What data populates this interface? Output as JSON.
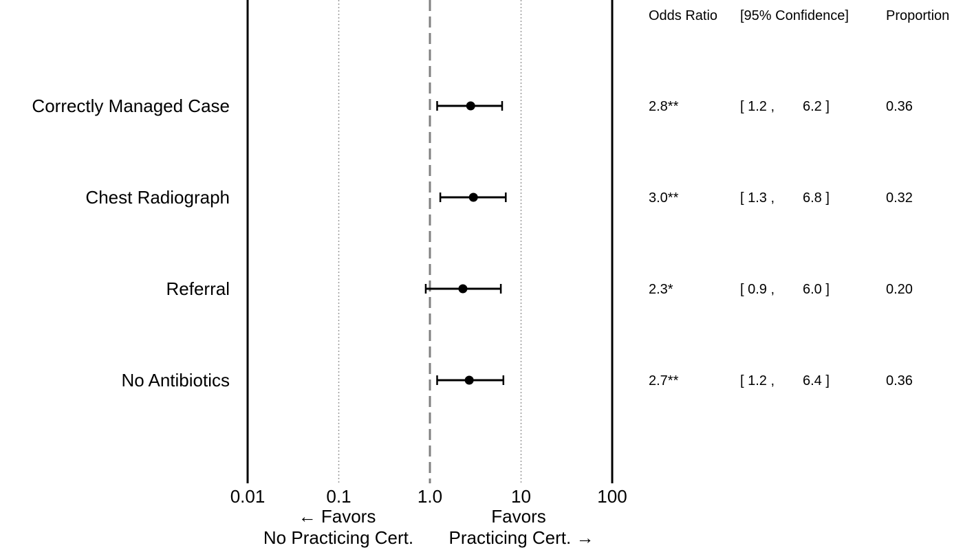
{
  "chart_data": {
    "type": "forest",
    "x_scale": "log",
    "xlim": [
      0.01,
      100
    ],
    "reference_line": 1.0,
    "x_ticks": [
      {
        "value": 0.01,
        "label": "0.01"
      },
      {
        "value": 0.1,
        "label": "0.1"
      },
      {
        "value": 1.0,
        "label": "1.0"
      },
      {
        "value": 10,
        "label": "10"
      },
      {
        "value": 100,
        "label": "100"
      }
    ],
    "favors_left": [
      "← Favors",
      "No Practicing Cert."
    ],
    "favors_right": [
      "Favors",
      "Practicing Cert. →"
    ],
    "columns": {
      "odds_ratio": "Odds Ratio",
      "confidence": "[95% Confidence]",
      "proportion": "Proportion"
    },
    "rows": [
      {
        "label": "Correctly Managed Case",
        "or": 2.8,
        "lo": 1.2,
        "hi": 6.2,
        "or_text": "2.8**",
        "lo_text": "[ 1.2 ,",
        "hi_text": "6.2 ]",
        "proportion": "0.36"
      },
      {
        "label": "Chest Radiograph",
        "or": 3.0,
        "lo": 1.3,
        "hi": 6.8,
        "or_text": "3.0**",
        "lo_text": "[ 1.3 ,",
        "hi_text": "6.8 ]",
        "proportion": "0.32"
      },
      {
        "label": "Referral",
        "or": 2.3,
        "lo": 0.9,
        "hi": 6.0,
        "or_text": "2.3*",
        "lo_text": "[ 0.9 ,",
        "hi_text": "6.0 ]",
        "proportion": "0.20"
      },
      {
        "label": "No Antibiotics",
        "or": 2.7,
        "lo": 1.2,
        "hi": 6.4,
        "or_text": "2.7**",
        "lo_text": "[ 1.2 ,",
        "hi_text": "6.4 ]",
        "proportion": "0.36"
      }
    ]
  }
}
